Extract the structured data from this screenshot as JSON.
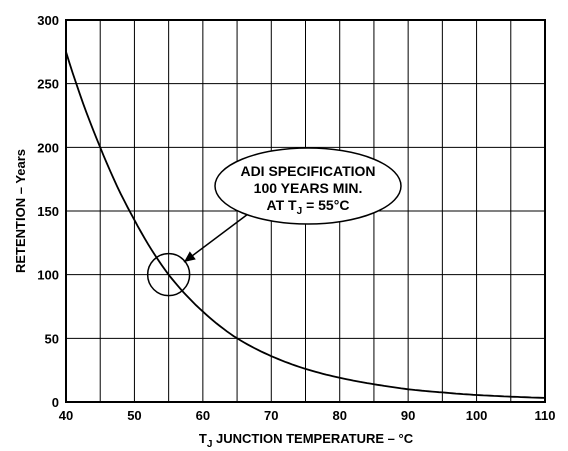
{
  "chart_data": {
    "type": "line",
    "xlabel": {
      "main": "T",
      "sub": "J",
      "rest": " JUNCTION TEMPERATURE – °C"
    },
    "ylabel": "RETENTION – Years",
    "xlim": [
      40,
      110
    ],
    "ylim": [
      0,
      300
    ],
    "x_ticks": [
      "40",
      "50",
      "60",
      "70",
      "80",
      "90",
      "100",
      "110"
    ],
    "y_ticks": [
      "0",
      "50",
      "100",
      "150",
      "200",
      "250",
      "300"
    ],
    "x_grid_step": 5,
    "y_grid_step": 50,
    "grid": true,
    "series": [
      {
        "x": [
          40,
          45,
          50,
          55,
          60,
          65,
          70,
          75,
          80,
          85,
          90,
          95,
          100,
          105,
          110
        ],
        "y": [
          275,
          200,
          143,
          100,
          71,
          50,
          36,
          26,
          19,
          14,
          10,
          7.5,
          5.5,
          4.2,
          3.2
        ]
      }
    ],
    "annotation": {
      "lines": [
        "ADI SPECIFICATION",
        "100 YEARS MIN.",
        {
          "pre": "AT T",
          "sub": "J",
          "post": " = 55°C"
        }
      ],
      "point": {
        "x": 55,
        "y": 100
      }
    },
    "color": "#000000"
  }
}
